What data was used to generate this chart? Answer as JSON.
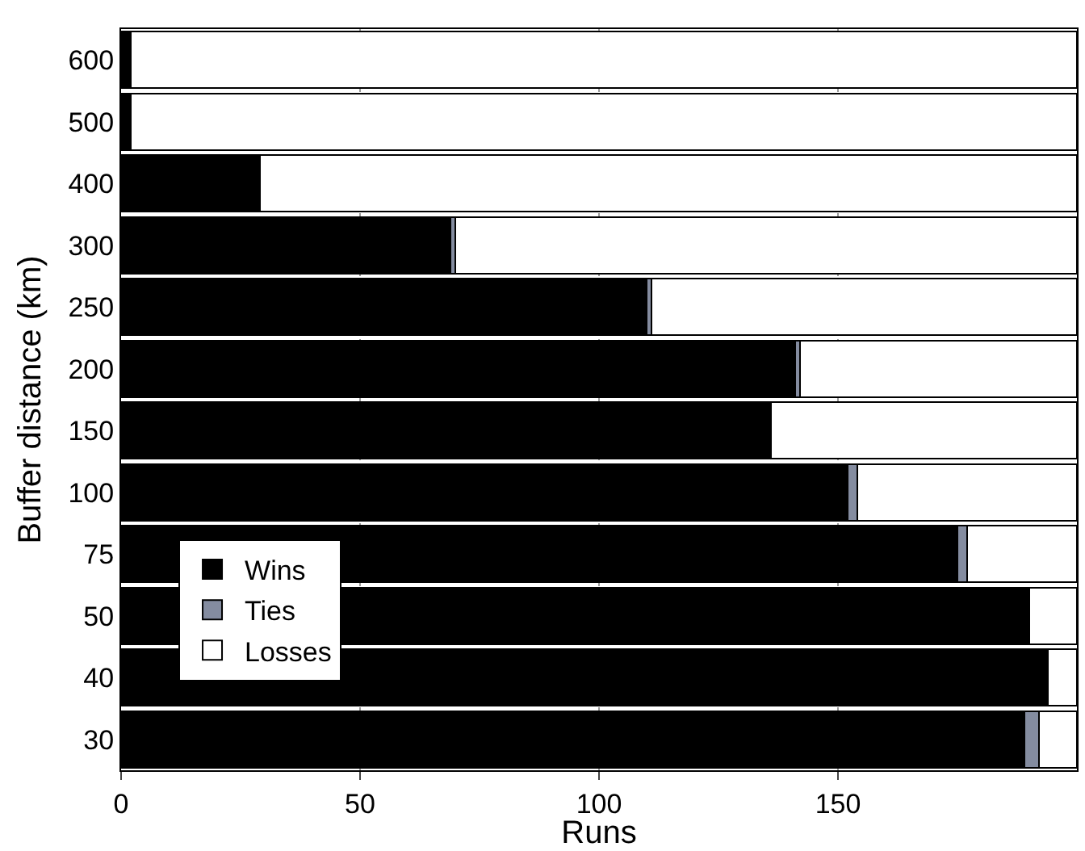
{
  "chart_data": {
    "type": "bar",
    "orientation": "horizontal",
    "stacked": true,
    "xlabel": "Runs",
    "ylabel": "Buffer distance (km)",
    "categories": [
      "600",
      "500",
      "400",
      "300",
      "250",
      "200",
      "150",
      "100",
      "75",
      "50",
      "40",
      "30"
    ],
    "series": [
      {
        "name": "Wins",
        "color": "#000000",
        "values": [
          2,
          2,
          29,
          69,
          110,
          141,
          136,
          152,
          175,
          190,
          194,
          189
        ]
      },
      {
        "name": "Ties",
        "color": "#848ca0",
        "values": [
          0,
          0,
          0,
          1,
          1,
          1,
          0,
          2,
          2,
          0,
          0,
          3
        ]
      },
      {
        "name": "Losses",
        "color": "#ffffff",
        "values": [
          198,
          198,
          171,
          130,
          89,
          58,
          64,
          46,
          23,
          10,
          6,
          8
        ]
      }
    ],
    "xlim": [
      0,
      200
    ],
    "xticks": [
      0,
      50,
      100,
      150
    ],
    "grid": "x",
    "legend": "bottom left"
  }
}
